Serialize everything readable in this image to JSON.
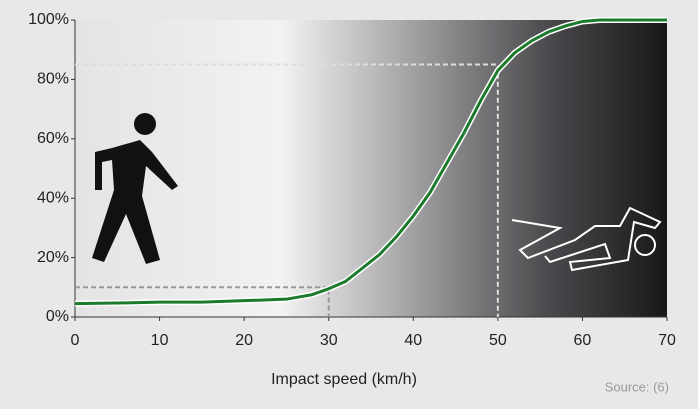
{
  "chart_data": {
    "type": "line",
    "x_label": "Impact speed (km/h)",
    "source": "Source: (6)",
    "x": [
      0,
      5,
      10,
      15,
      20,
      25,
      26,
      28,
      30,
      32,
      34,
      36,
      38,
      40,
      42,
      44,
      46,
      48,
      50,
      52,
      54,
      56,
      58,
      60,
      62,
      65,
      70
    ],
    "series": [
      {
        "color": "#1b7a2b",
        "values": [
          4.5,
          4.7,
          5,
          5,
          5.5,
          6,
          6.5,
          7.5,
          9.5,
          12,
          16.5,
          21,
          27,
          34,
          42,
          52,
          62,
          73,
          83,
          89,
          93,
          96,
          98,
          99.5,
          100,
          100,
          100
        ]
      }
    ],
    "reference_points": [
      {
        "x": 30,
        "y": 10
      },
      {
        "x": 50,
        "y": 85
      }
    ],
    "xlim": [
      0,
      70
    ],
    "xticks": [
      0,
      10,
      20,
      30,
      40,
      50,
      60,
      70
    ],
    "ylim": [
      0,
      100
    ],
    "yticks": [
      {
        "value": 0,
        "label": "0%"
      },
      {
        "value": 20,
        "label": "20%"
      },
      {
        "value": 40,
        "label": "40%"
      },
      {
        "value": 60,
        "label": "60%"
      },
      {
        "value": 80,
        "label": "80%"
      },
      {
        "value": 100,
        "label": "100%"
      }
    ]
  }
}
